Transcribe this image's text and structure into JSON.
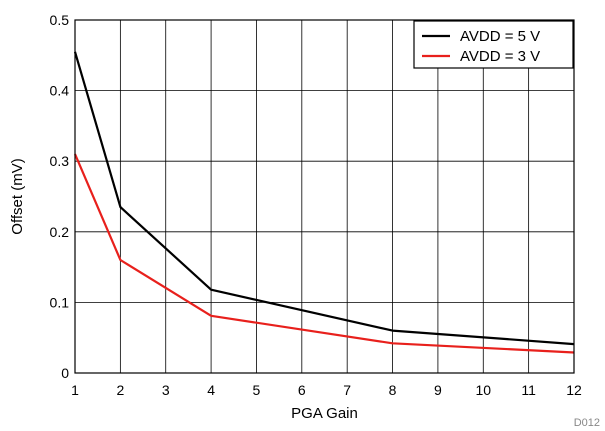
{
  "chart_data": {
    "type": "line",
    "title": "",
    "xlabel": "PGA Gain",
    "ylabel": "Offset (mV)",
    "figure_id": "D012",
    "xlim": [
      1,
      12
    ],
    "ylim": [
      0,
      0.5
    ],
    "x_ticks": [
      "1",
      "2",
      "3",
      "4",
      "5",
      "6",
      "7",
      "8",
      "9",
      "10",
      "11",
      "12"
    ],
    "y_ticks": [
      "0",
      "0.1",
      "0.2",
      "0.3",
      "0.4",
      "0.5"
    ],
    "grid": true,
    "legend_position": "top-right",
    "series": [
      {
        "name": "AVDD = 5 V",
        "color": "#000000",
        "x": [
          1,
          2,
          4,
          8,
          12
        ],
        "y": [
          0.455,
          0.235,
          0.118,
          0.06,
          0.041
        ]
      },
      {
        "name": "AVDD = 3 V",
        "color": "#e8201c",
        "x": [
          1,
          2,
          4,
          8,
          12
        ],
        "y": [
          0.31,
          0.16,
          0.081,
          0.042,
          0.029
        ]
      }
    ]
  }
}
